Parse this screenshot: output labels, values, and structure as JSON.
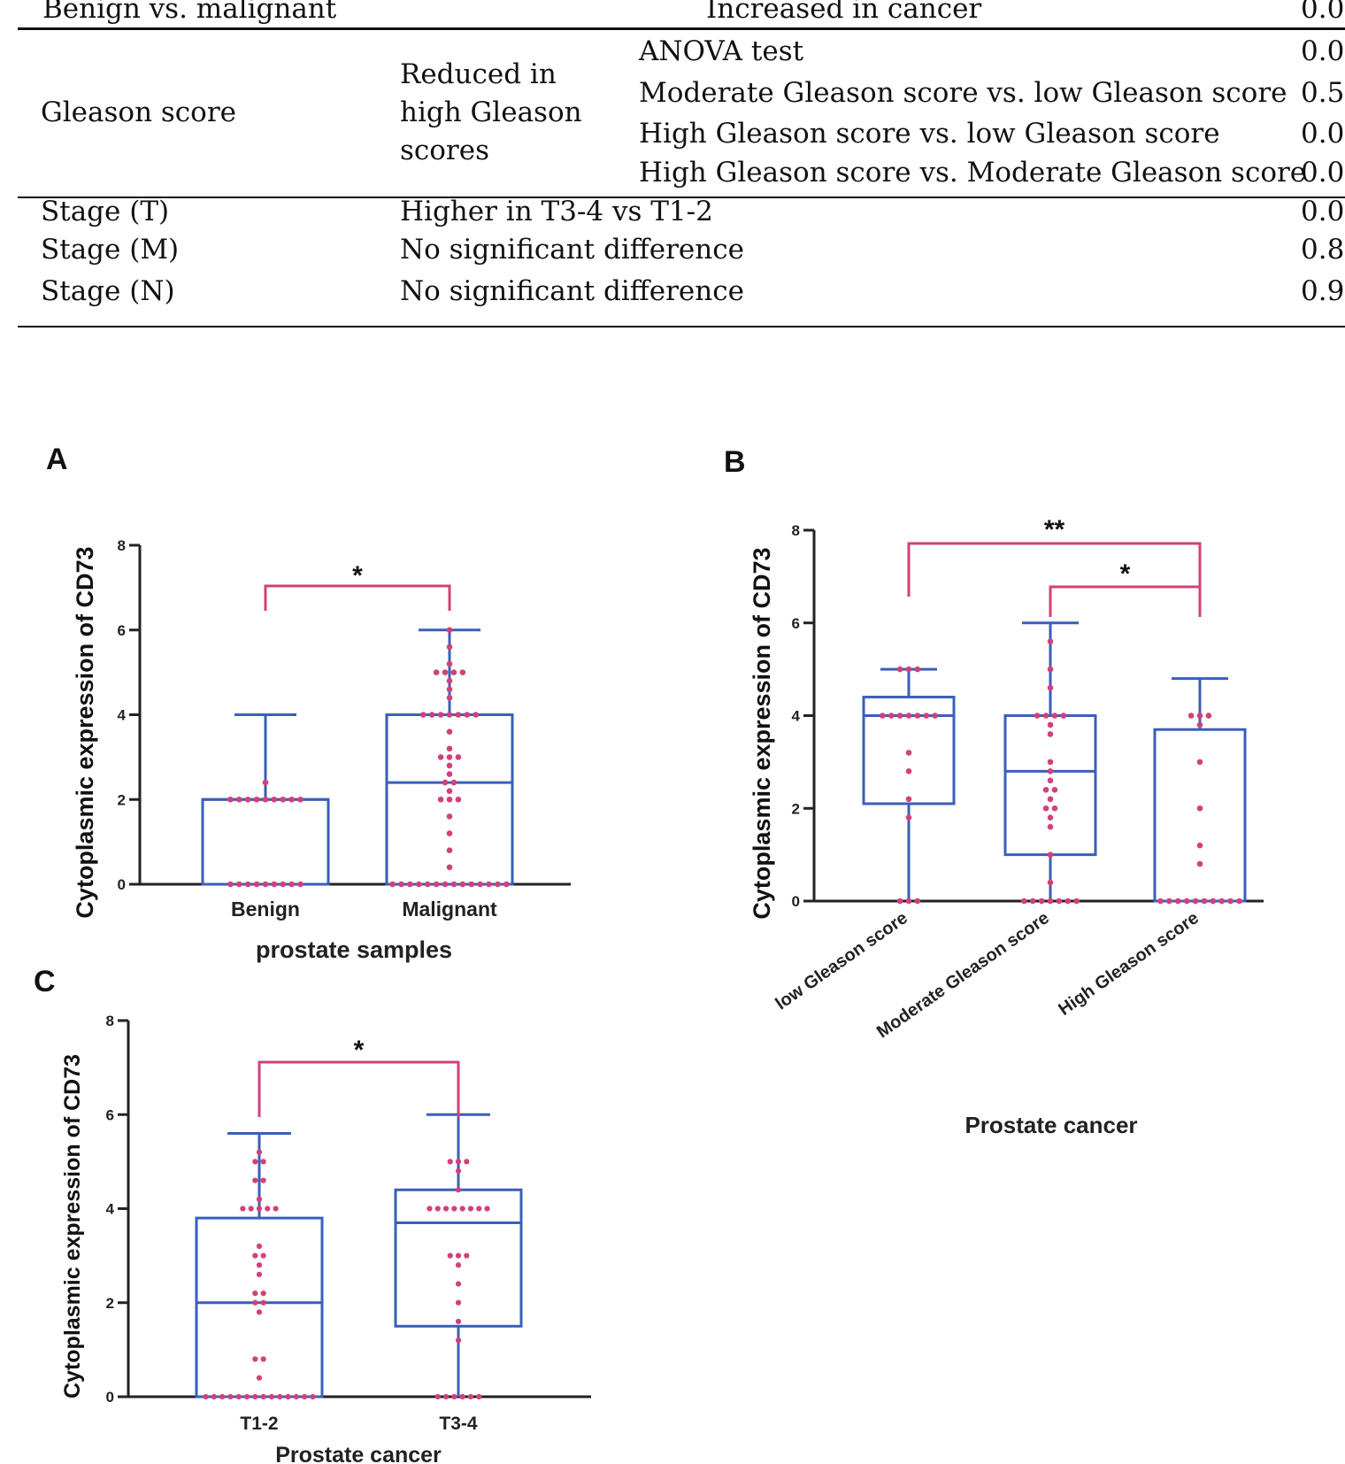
{
  "table": {
    "rows": [
      {
        "c1": "Benign vs. malignant",
        "c3": "Increased in cancer",
        "p": "0.0"
      },
      {
        "c1": "Gleason score",
        "c2": [
          "Reduced in",
          "high Gleason",
          "scores"
        ],
        "c3": "ANOVA test",
        "p": "0.0"
      },
      {
        "c3": "Moderate Gleason score vs. low Gleason score",
        "p": "0.5"
      },
      {
        "c3": "High Gleason score vs. low Gleason score",
        "p": "0.0"
      },
      {
        "c3": "High Gleason score vs. Moderate Gleason score",
        "p": "0.0"
      },
      {
        "c1": "Stage (T)",
        "c2": "Higher in T3-4 vs T1-2",
        "p": "0.0"
      },
      {
        "c1": "Stage (M)",
        "c2": "No significant difference",
        "p": "0.8"
      },
      {
        "c1": "Stage (N)",
        "c2": "No significant difference",
        "p": "0.9"
      }
    ]
  },
  "colors": {
    "box": "#3a5fb8",
    "dot": "#d0417a",
    "bracket": "#d0417a",
    "axis": "#222222"
  },
  "chart_data": [
    {
      "panel": "A",
      "type": "box",
      "ylabel": "Cytoplasmic expression of CD73",
      "xlabel": "prostate samples",
      "ylim": [
        0,
        8
      ],
      "yticks": [
        0,
        2,
        4,
        6,
        8
      ],
      "categories": [
        "Benign",
        "Malignant"
      ],
      "boxes": [
        {
          "min": 0,
          "q1": 0,
          "median": 2,
          "q3": 2,
          "max": 4
        },
        {
          "min": 0,
          "q1": 0,
          "median": 2.4,
          "q3": 4,
          "max": 6
        }
      ],
      "points": [
        [
          0,
          0,
          0,
          0,
          0,
          0,
          0,
          0,
          0,
          2,
          2,
          2,
          2,
          2,
          2,
          2,
          2,
          2,
          2.4
        ],
        [
          0,
          0,
          0,
          0,
          0,
          0,
          0,
          0,
          0,
          0,
          0,
          0,
          0,
          0,
          0.4,
          0.8,
          1.2,
          1.6,
          2,
          2,
          2,
          2.2,
          2.4,
          2.4,
          2.6,
          2.8,
          3,
          3,
          3,
          3.2,
          3.6,
          4,
          4,
          4,
          4,
          4,
          4,
          4,
          4.4,
          4.6,
          4.8,
          5,
          5,
          5,
          5,
          5.2,
          5.6,
          6
        ]
      ],
      "significance": [
        {
          "from": 0,
          "to": 1,
          "label": "*"
        }
      ]
    },
    {
      "panel": "B",
      "type": "box",
      "ylabel": "Cytoplasmic expression of CD73",
      "xlabel": "Prostate cancer",
      "ylim": [
        0,
        8
      ],
      "yticks": [
        0,
        2,
        4,
        6,
        8
      ],
      "categories": [
        "low Gleason score",
        "Moderate Gleason score",
        "High Gleason score"
      ],
      "boxes": [
        {
          "min": 0,
          "q1": 2.1,
          "median": 4,
          "q3": 4.4,
          "max": 5
        },
        {
          "min": 0,
          "q1": 1,
          "median": 2.8,
          "q3": 4,
          "max": 6
        },
        {
          "min": 0,
          "q1": 0,
          "median": 0,
          "q3": 3.7,
          "max": 4.8
        }
      ],
      "points": [
        [
          0,
          0,
          0,
          1.8,
          2.2,
          2.8,
          3.2,
          4,
          4,
          4,
          4,
          4,
          4,
          4,
          5,
          5,
          5
        ],
        [
          0,
          0,
          0,
          0,
          0,
          0,
          0,
          0.4,
          1,
          1.6,
          1.8,
          2,
          2,
          2.2,
          2.4,
          2.4,
          2.6,
          2.8,
          3,
          3.6,
          3.8,
          4,
          4,
          4,
          4,
          4.6,
          5,
          5.6
        ],
        [
          0,
          0,
          0,
          0,
          0,
          0,
          0,
          0,
          0,
          0,
          0.8,
          1.2,
          2,
          3,
          3.8,
          4,
          4,
          4
        ]
      ],
      "significance": [
        {
          "from": 0,
          "to": 2,
          "label": "**"
        },
        {
          "from": 1,
          "to": 2,
          "label": "*"
        }
      ]
    },
    {
      "panel": "C",
      "type": "box",
      "ylabel": "Cytoplasmic expression of CD73",
      "xlabel": "Prostate cancer",
      "ylim": [
        0,
        8
      ],
      "yticks": [
        0,
        2,
        4,
        6,
        8
      ],
      "categories": [
        "T1-2",
        "T3-4"
      ],
      "boxes": [
        {
          "min": 0,
          "q1": 0,
          "median": 2,
          "q3": 3.8,
          "max": 5.6
        },
        {
          "min": 0,
          "q1": 1.5,
          "median": 3.7,
          "q3": 4.4,
          "max": 6
        }
      ],
      "points": [
        [
          0,
          0,
          0,
          0,
          0,
          0,
          0,
          0,
          0,
          0,
          0,
          0,
          0,
          0,
          0.4,
          0.8,
          0.8,
          1.8,
          2,
          2,
          2.2,
          2.2,
          2.6,
          2.8,
          3,
          3,
          3.2,
          4,
          4,
          4,
          4,
          4,
          4.2,
          4.6,
          4.6,
          5,
          5,
          5.2
        ],
        [
          0,
          0,
          0,
          0,
          0,
          0,
          1.2,
          1.6,
          2,
          2.4,
          2.8,
          3,
          3,
          3,
          4,
          4,
          4,
          4,
          4,
          4,
          4,
          4,
          4.4,
          4.8,
          5,
          5,
          5
        ]
      ],
      "significance": [
        {
          "from": 0,
          "to": 1,
          "label": "*"
        }
      ]
    }
  ]
}
